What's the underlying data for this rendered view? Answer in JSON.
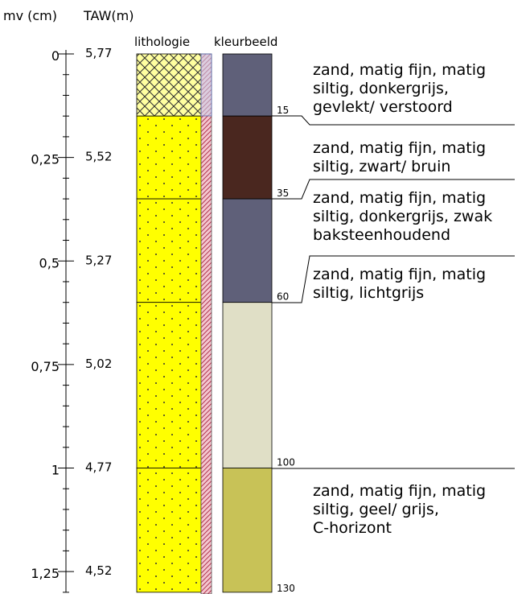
{
  "headers": {
    "depth": "mv (cm)",
    "taw": "TAW(m)",
    "lithology": "lithologie",
    "color": "kleurbeeld"
  },
  "depth_ticks": [
    "0",
    "0,25",
    "0,5",
    "0,75",
    "1",
    "1,25"
  ],
  "taw_ticks": [
    "5,77",
    "5,52",
    "5,27",
    "5,02",
    "4,77",
    "4,52"
  ],
  "profile": {
    "total_depth_cm": 130,
    "lithology_layers": [
      {
        "from_cm": 0,
        "to_cm": 15,
        "pattern": "crosshatch-yellow"
      },
      {
        "from_cm": 15,
        "to_cm": 35,
        "pattern": "dotted-yellow"
      },
      {
        "from_cm": 35,
        "to_cm": 60,
        "pattern": "dotted-yellow"
      },
      {
        "from_cm": 60,
        "to_cm": 100,
        "pattern": "dotted-yellow"
      },
      {
        "from_cm": 100,
        "to_cm": 130,
        "pattern": "dotted-yellow"
      }
    ],
    "color_layers": [
      {
        "from_cm": 0,
        "to_cm": 15,
        "color": "#5f6079"
      },
      {
        "from_cm": 15,
        "to_cm": 35,
        "color": "#4a271f"
      },
      {
        "from_cm": 35,
        "to_cm": 60,
        "color": "#5f6079"
      },
      {
        "from_cm": 60,
        "to_cm": 100,
        "color": "#e0dfc6"
      },
      {
        "from_cm": 100,
        "to_cm": 130,
        "color": "#c8c257"
      }
    ],
    "boundary_labels": [
      "15",
      "35",
      "60",
      "100",
      "130"
    ]
  },
  "descriptions": [
    {
      "lines": [
        "zand, matig fijn, matig",
        "siltig, donkergrijs,",
        "gevlekt/ verstoord"
      ]
    },
    {
      "lines": [
        "zand, matig fijn, matig",
        "siltig, zwart/ bruin"
      ]
    },
    {
      "lines": [
        "zand, matig fijn, matig",
        "siltig, donkergrijs, zwak",
        "baksteenhoudend"
      ]
    },
    {
      "lines": [
        "zand, matig fijn, matig",
        "siltig, lichtgrijs"
      ]
    },
    {
      "lines": [
        "zand, matig fijn, matig",
        "siltig, geel/ grijs,",
        "C-horizont"
      ]
    }
  ]
}
